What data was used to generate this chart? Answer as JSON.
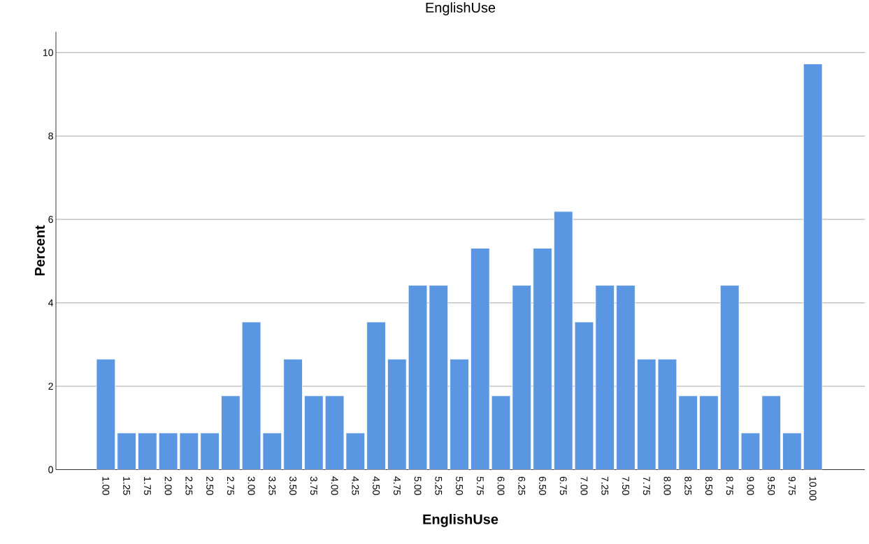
{
  "chart_data": {
    "type": "bar",
    "title": "EnglishUse",
    "xlabel": "EnglishUse",
    "ylabel": "Percent",
    "categories": [
      "1.00",
      "1.25",
      "1.75",
      "2.00",
      "2.25",
      "2.50",
      "2.75",
      "3.00",
      "3.25",
      "3.50",
      "3.75",
      "4.00",
      "4.25",
      "4.50",
      "4.75",
      "5.00",
      "5.25",
      "5.50",
      "5.75",
      "6.00",
      "6.25",
      "6.50",
      "6.75",
      "7.00",
      "7.25",
      "7.50",
      "7.75",
      "8.00",
      "8.25",
      "8.50",
      "8.75",
      "9.00",
      "9.50",
      "9.75",
      "10.00"
    ],
    "values": [
      2.65,
      0.88,
      0.88,
      0.88,
      0.88,
      0.88,
      1.77,
      3.54,
      0.88,
      2.65,
      1.77,
      1.77,
      0.88,
      3.54,
      2.65,
      4.42,
      4.42,
      2.65,
      5.31,
      1.77,
      4.42,
      5.31,
      6.19,
      3.54,
      4.42,
      4.42,
      2.65,
      2.65,
      1.77,
      1.77,
      4.42,
      0.88,
      1.77,
      0.88,
      9.73
    ],
    "color": "#5b96e3",
    "ylim": [
      0,
      10.5
    ],
    "yticks": [
      0,
      2,
      4,
      6,
      8,
      10
    ],
    "grid": "y"
  }
}
